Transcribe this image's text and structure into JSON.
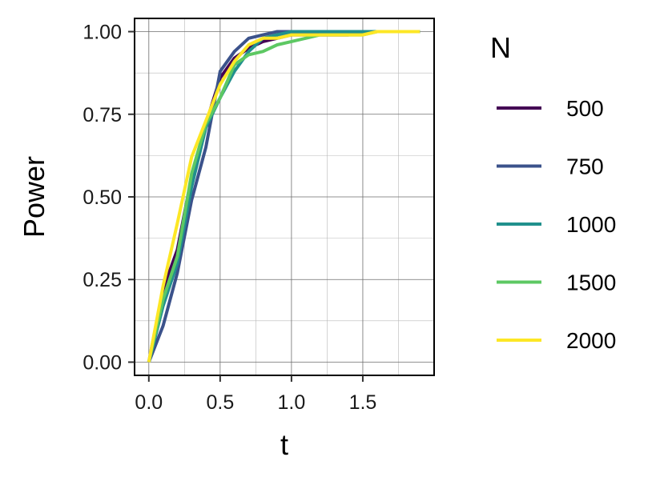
{
  "chart_data": {
    "type": "line",
    "xlabel": "t",
    "ylabel": "Power",
    "xlim": [
      -0.1,
      2.0
    ],
    "ylim": [
      -0.04,
      1.04
    ],
    "x_ticks": [
      "0.0",
      "0.5",
      "1.0",
      "1.5"
    ],
    "y_ticks": [
      "0.00",
      "0.25",
      "0.50",
      "0.75",
      "1.00"
    ],
    "grid": true,
    "legend": {
      "title": "N",
      "placement": "right"
    },
    "series": [
      {
        "name": "500",
        "color": "#440154",
        "x": [
          0,
          0.1,
          0.2,
          0.3,
          0.4,
          0.5,
          0.6,
          0.7,
          0.8,
          0.9,
          1.0,
          1.1,
          1.2,
          1.3,
          1.4,
          1.5,
          1.6,
          1.7,
          1.8,
          1.9
        ],
        "y": [
          0,
          0.22,
          0.34,
          0.56,
          0.72,
          0.86,
          0.92,
          0.95,
          0.97,
          0.98,
          0.99,
          0.99,
          0.99,
          0.99,
          0.99,
          1.0,
          1.0,
          1.0,
          1.0,
          1.0
        ]
      },
      {
        "name": "750",
        "color": "#3b528b",
        "x": [
          0,
          0.1,
          0.2,
          0.3,
          0.4,
          0.5,
          0.6,
          0.7,
          0.8,
          0.9,
          1.0,
          1.1,
          1.2,
          1.3,
          1.4,
          1.5,
          1.6,
          1.7,
          1.8,
          1.9
        ],
        "y": [
          0,
          0.11,
          0.27,
          0.49,
          0.65,
          0.88,
          0.94,
          0.98,
          0.99,
          1.0,
          1.0,
          1.0,
          1.0,
          1.0,
          1.0,
          1.0,
          1.0,
          1.0,
          1.0,
          1.0
        ]
      },
      {
        "name": "1000",
        "color": "#21908d",
        "x": [
          0,
          0.1,
          0.2,
          0.3,
          0.4,
          0.5,
          0.6,
          0.7,
          0.8,
          0.9,
          1.0,
          1.1,
          1.2,
          1.3,
          1.4,
          1.5,
          1.6,
          1.7,
          1.8,
          1.9
        ],
        "y": [
          0,
          0.17,
          0.3,
          0.53,
          0.71,
          0.8,
          0.88,
          0.94,
          0.98,
          0.99,
          1.0,
          1.0,
          1.0,
          1.0,
          1.0,
          1.0,
          1.0,
          1.0,
          1.0,
          1.0
        ]
      },
      {
        "name": "1500",
        "color": "#5dc863",
        "x": [
          0,
          0.1,
          0.2,
          0.3,
          0.4,
          0.5,
          0.6,
          0.7,
          0.8,
          0.9,
          1.0,
          1.1,
          1.2,
          1.3,
          1.4,
          1.5,
          1.6,
          1.7,
          1.8,
          1.9
        ],
        "y": [
          0,
          0.19,
          0.32,
          0.57,
          0.72,
          0.8,
          0.9,
          0.93,
          0.94,
          0.96,
          0.97,
          0.98,
          0.99,
          0.99,
          0.99,
          0.99,
          1.0,
          1.0,
          1.0,
          1.0
        ]
      },
      {
        "name": "2000",
        "color": "#fde725",
        "x": [
          0,
          0.1,
          0.2,
          0.3,
          0.4,
          0.5,
          0.6,
          0.7,
          0.8,
          0.9,
          1.0,
          1.1,
          1.2,
          1.3,
          1.4,
          1.5,
          1.6,
          1.7,
          1.8,
          1.9
        ],
        "y": [
          0,
          0.23,
          0.42,
          0.62,
          0.73,
          0.84,
          0.91,
          0.96,
          0.98,
          0.98,
          0.99,
          0.99,
          0.99,
          0.99,
          0.99,
          0.99,
          1.0,
          1.0,
          1.0,
          1.0
        ]
      }
    ]
  }
}
